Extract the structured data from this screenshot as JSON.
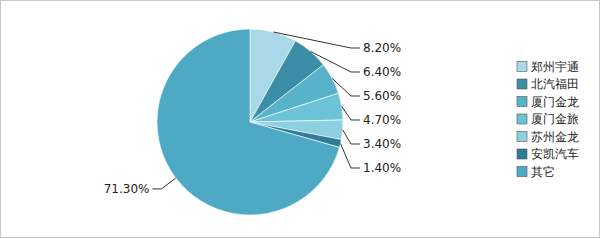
{
  "chart_data": {
    "type": "pie",
    "categories": [
      "郑州宇通",
      "北汽福田",
      "厦门金龙",
      "厦门金旅",
      "苏州金龙",
      "安凯汽车",
      "其它"
    ],
    "values": [
      8.2,
      6.4,
      5.6,
      4.7,
      3.4,
      1.4,
      71.3
    ],
    "value_labels": [
      "8.20%",
      "6.40%",
      "5.60%",
      "4.70%",
      "3.40%",
      "1.40%",
      "71.30%"
    ],
    "colors": [
      "#a9d9e9",
      "#3c8ea8",
      "#58b2ca",
      "#6cc3d8",
      "#8dd0e2",
      "#2f7c96",
      "#4ea9c5"
    ],
    "data_labels": true,
    "legend": "right"
  }
}
